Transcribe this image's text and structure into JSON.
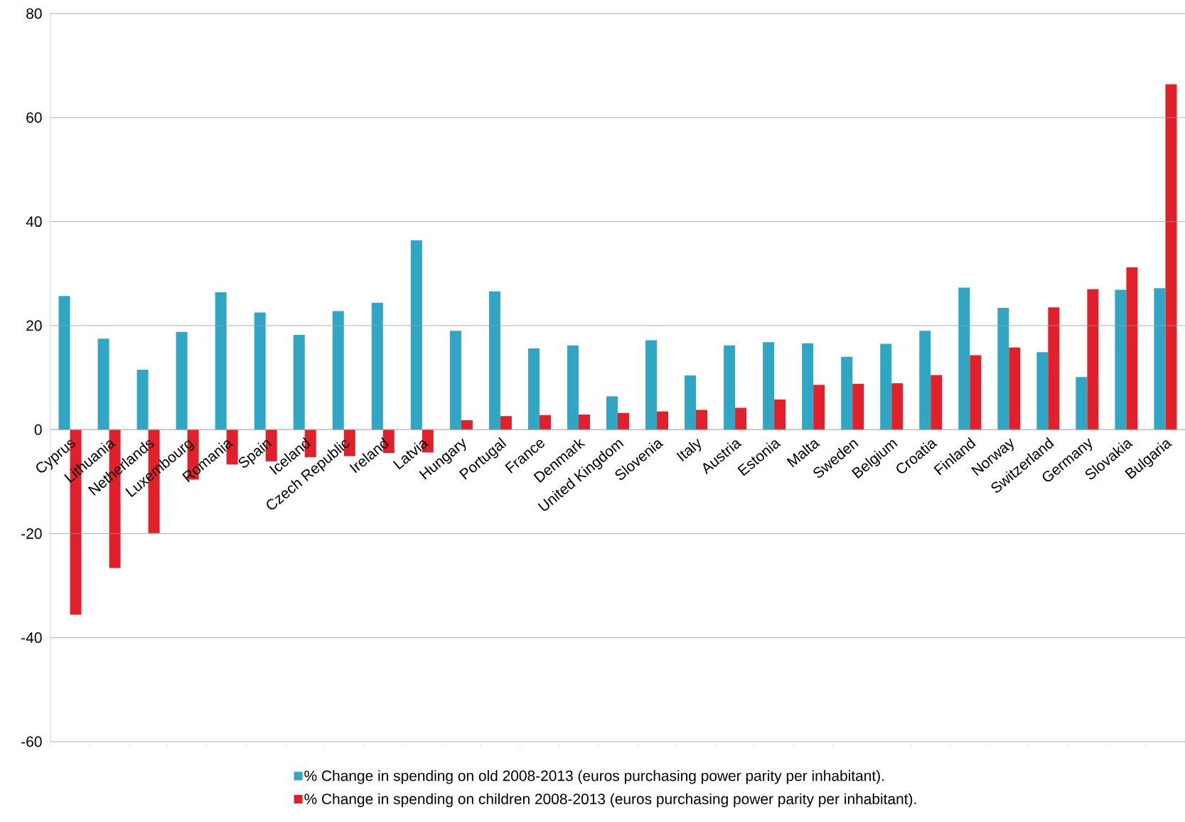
{
  "chart_data": {
    "type": "bar",
    "categories": [
      "Cyprus",
      "Lithuania",
      "Netherlands",
      "Luxembourg",
      "Romania",
      "Spain",
      "Iceland",
      "Czech Republic",
      "Ireland",
      "Latvia",
      "Hungary",
      "Portugal",
      "France",
      "Denmark",
      "United Kingdom",
      "Slovenia",
      "Italy",
      "Austria",
      "Estonia",
      "Malta",
      "Sweden",
      "Belgium",
      "Croatia",
      "Finland",
      "Norway",
      "Switzerland",
      "Germany",
      "Slovakia",
      "Bulgaria"
    ],
    "series": [
      {
        "name": "% Change in spending on old 2008-2013 (euros purchasing power parity per inhabitant).",
        "color": "#31a6c4",
        "values": [
          25.7,
          17.5,
          11.5,
          18.8,
          26.4,
          22.5,
          18.2,
          22.8,
          24.4,
          36.4,
          19.0,
          26.6,
          15.6,
          16.2,
          6.4,
          17.2,
          10.4,
          16.2,
          16.8,
          16.6,
          14.0,
          16.5,
          19.0,
          27.3,
          23.4,
          14.9,
          10.1,
          26.9,
          27.2
        ]
      },
      {
        "name": "% Change in spending on children 2008-2013 (euros purchasing power parity per inhabitant).",
        "color": "#e0202b",
        "values": [
          -35.6,
          -26.6,
          -19.9,
          -9.6,
          -6.7,
          -6.1,
          -5.3,
          -5.1,
          -4.5,
          -4.4,
          1.8,
          2.6,
          2.8,
          2.9,
          3.2,
          3.5,
          3.8,
          4.2,
          5.8,
          8.6,
          8.8,
          8.9,
          10.5,
          14.3,
          15.8,
          23.5,
          27.0,
          31.2,
          66.4
        ]
      }
    ],
    "ylim": [
      -60,
      80
    ],
    "yticks": [
      -60,
      -40,
      -20,
      0,
      20,
      40,
      60,
      80
    ],
    "grid": "y",
    "legend": "bottom"
  }
}
